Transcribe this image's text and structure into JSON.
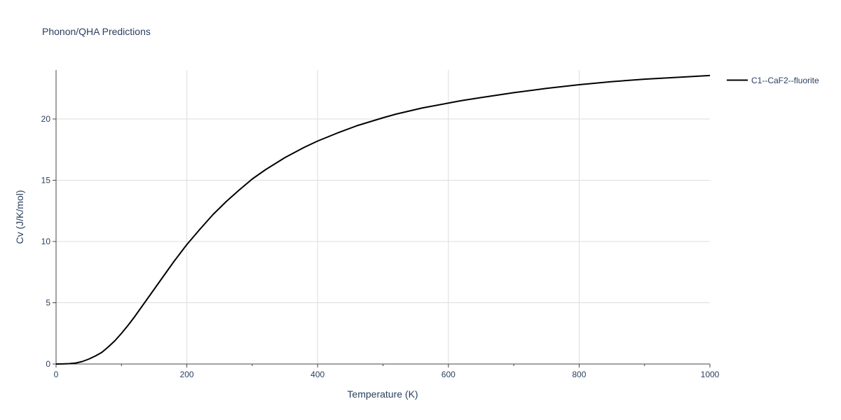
{
  "chart_data": {
    "type": "line",
    "title": "Phonon/QHA Predictions",
    "xlabel": "Temperature (K)",
    "ylabel": "Cv (J/K/mol)",
    "xlim": [
      0,
      1000
    ],
    "ylim": [
      0,
      24
    ],
    "x_ticks": [
      0,
      200,
      400,
      600,
      800,
      1000
    ],
    "y_ticks": [
      0,
      5,
      10,
      15,
      20
    ],
    "grid": true,
    "legend_position": "top-right (outside plot)",
    "series": [
      {
        "name": "C1--CaF2--fluorite",
        "color": "#000000",
        "x": [
          0,
          10,
          20,
          30,
          40,
          50,
          60,
          70,
          80,
          90,
          100,
          110,
          120,
          130,
          140,
          150,
          160,
          170,
          180,
          190,
          200,
          220,
          240,
          260,
          280,
          300,
          320,
          350,
          380,
          400,
          430,
          460,
          500,
          520,
          560,
          600,
          620,
          650,
          700,
          750,
          800,
          850,
          900,
          950,
          1000
        ],
        "y": [
          0,
          0.01,
          0.03,
          0.08,
          0.2,
          0.4,
          0.65,
          0.95,
          1.4,
          1.9,
          2.5,
          3.15,
          3.85,
          4.6,
          5.35,
          6.1,
          6.85,
          7.6,
          8.35,
          9.05,
          9.75,
          11.0,
          12.2,
          13.25,
          14.2,
          15.1,
          15.85,
          16.85,
          17.7,
          18.2,
          18.85,
          19.45,
          20.1,
          20.4,
          20.9,
          21.3,
          21.5,
          21.75,
          22.15,
          22.5,
          22.8,
          23.05,
          23.25,
          23.4,
          23.55
        ]
      }
    ]
  }
}
